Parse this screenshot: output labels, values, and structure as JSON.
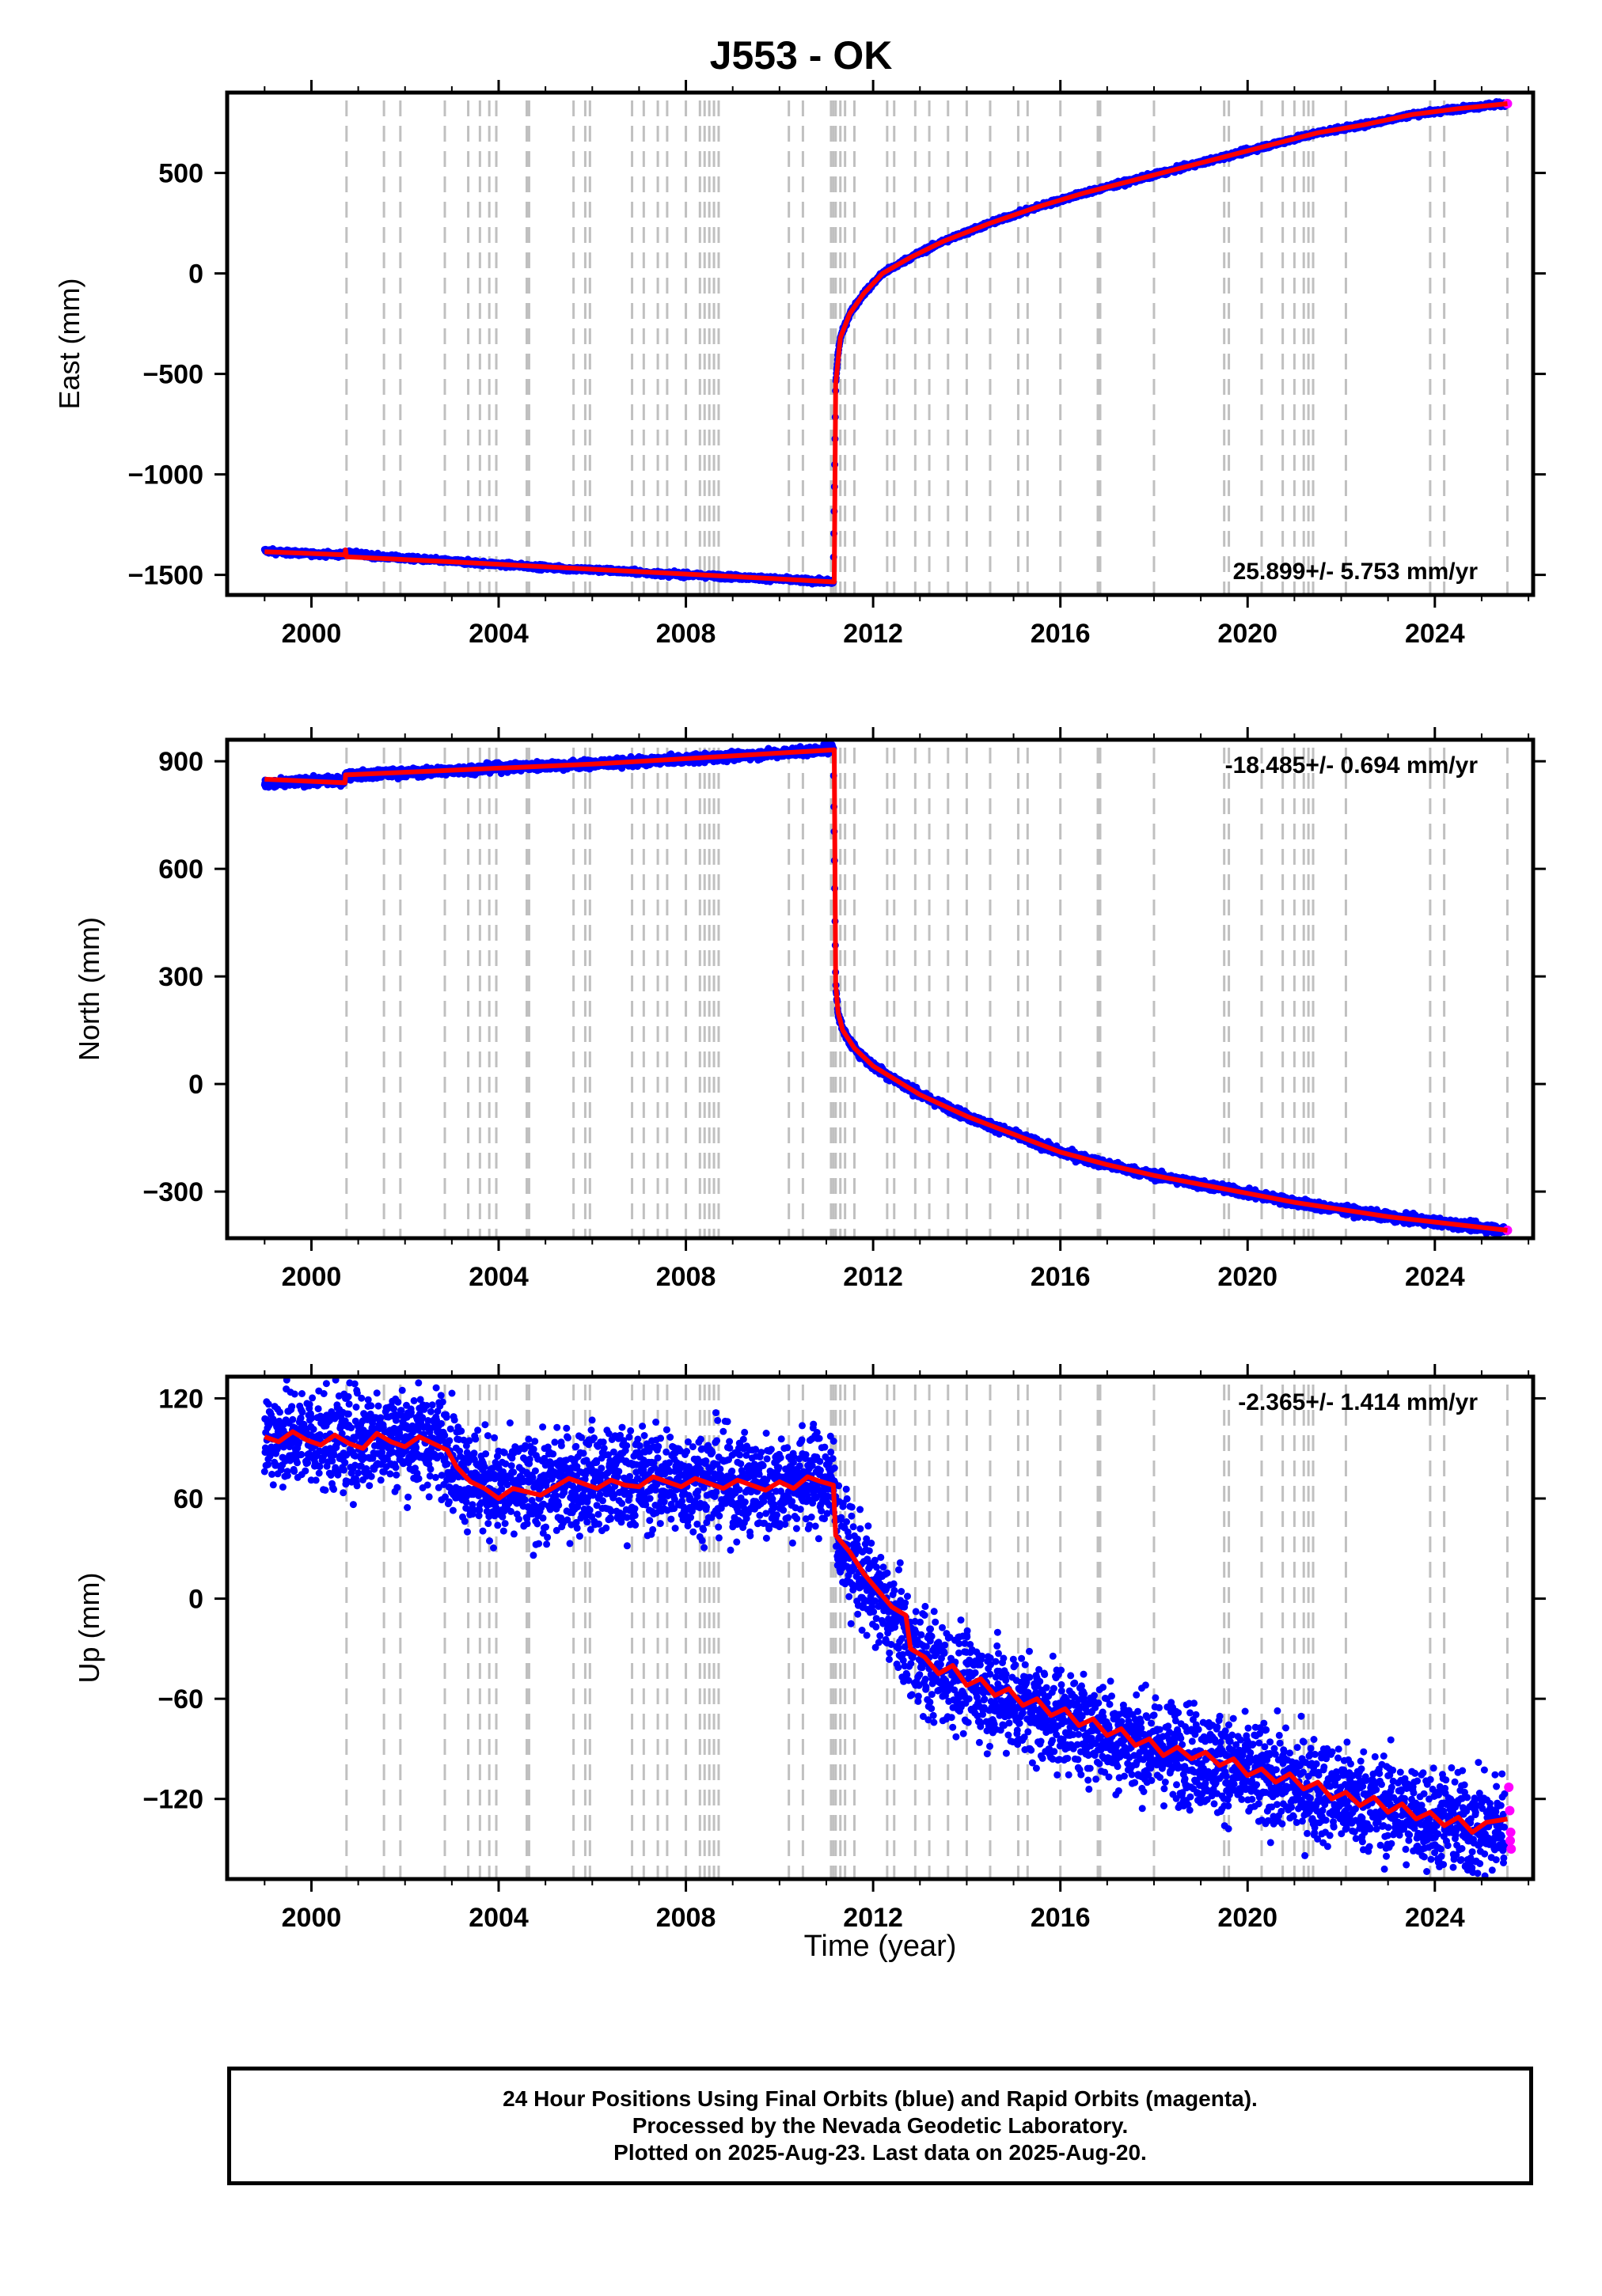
{
  "title": "J553 - OK",
  "xlabel": "Time (year)",
  "caption": [
    "24 Hour Positions Using Final Orbits (blue) and Rapid Orbits (magenta).",
    "Processed by the Nevada Geodetic Laboratory.",
    "Plotted on 2025-Aug-23. Last data on 2025-Aug-20."
  ],
  "colors": {
    "final": "#0000ff",
    "rapid": "#ff00ff",
    "model": "#ff0000",
    "event_lines": "#c0c0c0"
  },
  "chart_data": [
    {
      "type": "scatter",
      "ylabel": "East (mm)",
      "rate": "25.899+/- 5.753 mm/yr",
      "rate_position": "bottom-right",
      "xlim": [
        1998.2,
        2026.1
      ],
      "ylim": [
        -1600,
        900
      ],
      "xticks": [
        2000,
        2004,
        2008,
        2012,
        2016,
        2020,
        2024
      ],
      "yticks": [
        500,
        0,
        -500,
        -1000,
        -1500
      ],
      "ytick_labels": [
        "500",
        "0",
        "−500",
        "−1000",
        "−1500"
      ],
      "noise": 6,
      "final_points": [
        [
          1999.0,
          -1380
        ],
        [
          1999.5,
          -1390
        ],
        [
          2000.0,
          -1395
        ],
        [
          2000.7,
          -1400
        ],
        [
          2000.72,
          -1390
        ],
        [
          2001.5,
          -1410
        ],
        [
          2002.5,
          -1425
        ],
        [
          2003.5,
          -1440
        ],
        [
          2004.5,
          -1455
        ],
        [
          2005.5,
          -1470
        ],
        [
          2006.5,
          -1480
        ],
        [
          2007.5,
          -1495
        ],
        [
          2008.5,
          -1505
        ],
        [
          2009.5,
          -1515
        ],
        [
          2010.5,
          -1528
        ],
        [
          2011.15,
          -1535
        ],
        [
          2011.2,
          -550
        ],
        [
          2011.25,
          -400
        ],
        [
          2011.3,
          -320
        ],
        [
          2011.5,
          -200
        ],
        [
          2011.8,
          -100
        ],
        [
          2012.2,
          0
        ],
        [
          2012.8,
          80
        ],
        [
          2013.5,
          160
        ],
        [
          2014.5,
          250
        ],
        [
          2015.5,
          330
        ],
        [
          2016.5,
          400
        ],
        [
          2017.5,
          460
        ],
        [
          2018.5,
          520
        ],
        [
          2019.5,
          580
        ],
        [
          2020.5,
          640
        ],
        [
          2021.5,
          700
        ],
        [
          2022.5,
          740
        ],
        [
          2023.5,
          790
        ],
        [
          2024.5,
          820
        ],
        [
          2025.5,
          845
        ]
      ],
      "rapid_points": [
        [
          2025.55,
          845
        ]
      ],
      "model": [
        [
          1999.0,
          -1385
        ],
        [
          2000.72,
          -1400
        ],
        [
          2000.73,
          -1375
        ],
        [
          2000.75,
          -1410
        ],
        [
          2003.0,
          -1435
        ],
        [
          2006.0,
          -1472
        ],
        [
          2009.0,
          -1508
        ],
        [
          2011.17,
          -1535
        ],
        [
          2011.2,
          -550
        ],
        [
          2011.3,
          -320
        ],
        [
          2011.5,
          -200
        ],
        [
          2011.8,
          -100
        ],
        [
          2012.2,
          0
        ],
        [
          2012.8,
          80
        ],
        [
          2013.5,
          160
        ],
        [
          2014.5,
          250
        ],
        [
          2015.5,
          330
        ],
        [
          2016.5,
          400
        ],
        [
          2017.5,
          460
        ],
        [
          2018.5,
          520
        ],
        [
          2019.5,
          580
        ],
        [
          2020.5,
          640
        ],
        [
          2021.5,
          700
        ],
        [
          2022.5,
          740
        ],
        [
          2023.5,
          790
        ],
        [
          2024.5,
          820
        ],
        [
          2025.55,
          845
        ]
      ]
    },
    {
      "type": "scatter",
      "ylabel": "North (mm)",
      "rate": "-18.485+/- 0.694 mm/yr",
      "rate_position": "top-right",
      "xlim": [
        1998.2,
        2026.1
      ],
      "ylim": [
        -430,
        960
      ],
      "xticks": [
        2000,
        2004,
        2008,
        2012,
        2016,
        2020,
        2024
      ],
      "yticks": [
        900,
        600,
        300,
        0,
        -300
      ],
      "ytick_labels": [
        "900",
        "600",
        "300",
        "0",
        "−300"
      ],
      "noise": 6,
      "final_points": [
        [
          1999.0,
          835
        ],
        [
          1999.5,
          840
        ],
        [
          2000.0,
          845
        ],
        [
          2000.7,
          845
        ],
        [
          2000.72,
          860
        ],
        [
          2001.5,
          865
        ],
        [
          2002.5,
          870
        ],
        [
          2003.5,
          878
        ],
        [
          2004.5,
          885
        ],
        [
          2005.5,
          890
        ],
        [
          2006.5,
          895
        ],
        [
          2007.5,
          903
        ],
        [
          2008.5,
          910
        ],
        [
          2009.5,
          918
        ],
        [
          2010.5,
          928
        ],
        [
          2011.15,
          935
        ],
        [
          2011.2,
          280
        ],
        [
          2011.25,
          200
        ],
        [
          2011.35,
          150
        ],
        [
          2011.6,
          100
        ],
        [
          2012.0,
          50
        ],
        [
          2012.5,
          10
        ],
        [
          2013.0,
          -30
        ],
        [
          2014.0,
          -90
        ],
        [
          2015.0,
          -140
        ],
        [
          2016.0,
          -190
        ],
        [
          2017.0,
          -225
        ],
        [
          2018.0,
          -255
        ],
        [
          2019.0,
          -280
        ],
        [
          2020.0,
          -305
        ],
        [
          2021.0,
          -330
        ],
        [
          2022.0,
          -350
        ],
        [
          2023.0,
          -370
        ],
        [
          2024.0,
          -385
        ],
        [
          2025.0,
          -400
        ],
        [
          2025.5,
          -408
        ]
      ],
      "rapid_points": [
        [
          2025.55,
          -408
        ]
      ],
      "model": [
        [
          1999.0,
          850
        ],
        [
          2000.72,
          840
        ],
        [
          2000.73,
          862
        ],
        [
          2003.0,
          875
        ],
        [
          2006.0,
          892
        ],
        [
          2009.0,
          915
        ],
        [
          2011.17,
          932
        ],
        [
          2011.2,
          280
        ],
        [
          2011.25,
          200
        ],
        [
          2011.35,
          150
        ],
        [
          2011.6,
          100
        ],
        [
          2012.0,
          50
        ],
        [
          2012.5,
          10
        ],
        [
          2013.0,
          -30
        ],
        [
          2014.0,
          -90
        ],
        [
          2015.0,
          -140
        ],
        [
          2016.0,
          -190
        ],
        [
          2017.0,
          -225
        ],
        [
          2018.0,
          -255
        ],
        [
          2019.0,
          -280
        ],
        [
          2020.0,
          -305
        ],
        [
          2021.0,
          -330
        ],
        [
          2022.0,
          -350
        ],
        [
          2023.0,
          -370
        ],
        [
          2024.0,
          -385
        ],
        [
          2025.0,
          -400
        ],
        [
          2025.55,
          -408
        ]
      ]
    },
    {
      "type": "scatter",
      "ylabel": "Up (mm)",
      "rate": "-2.365+/- 1.414 mm/yr",
      "rate_position": "top-right",
      "xlim": [
        1998.2,
        2026.1
      ],
      "ylim": [
        -168,
        133
      ],
      "xticks": [
        2000,
        2004,
        2008,
        2012,
        2016,
        2020,
        2024
      ],
      "yticks": [
        120,
        60,
        0,
        -60,
        -120
      ],
      "ytick_labels": [
        "120",
        "60",
        "0",
        "−60",
        "−120"
      ],
      "noise": 15,
      "final_points": [
        [
          1999.0,
          98
        ],
        [
          1999.5,
          96
        ],
        [
          2000.0,
          97
        ],
        [
          2000.5,
          94
        ],
        [
          2001.0,
          95
        ],
        [
          2001.5,
          98
        ],
        [
          2002.0,
          96
        ],
        [
          2002.5,
          95
        ],
        [
          2002.9,
          94
        ],
        [
          2003.1,
          80
        ],
        [
          2003.5,
          72
        ],
        [
          2004.0,
          64
        ],
        [
          2004.5,
          65
        ],
        [
          2005.0,
          65
        ],
        [
          2005.5,
          70
        ],
        [
          2006.0,
          72
        ],
        [
          2006.5,
          70
        ],
        [
          2007.0,
          72
        ],
        [
          2007.5,
          71
        ],
        [
          2008.0,
          70
        ],
        [
          2008.5,
          71
        ],
        [
          2009.0,
          69
        ],
        [
          2009.5,
          67
        ],
        [
          2010.0,
          68
        ],
        [
          2010.5,
          72
        ],
        [
          2011.15,
          70
        ],
        [
          2011.25,
          40
        ],
        [
          2011.6,
          20
        ],
        [
          2012.0,
          5
        ],
        [
          2012.5,
          -15
        ],
        [
          2012.8,
          -30
        ],
        [
          2013.2,
          -40
        ],
        [
          2014.0,
          -50
        ],
        [
          2015.0,
          -62
        ],
        [
          2016.0,
          -72
        ],
        [
          2017.0,
          -80
        ],
        [
          2018.0,
          -90
        ],
        [
          2019.0,
          -95
        ],
        [
          2020.0,
          -105
        ],
        [
          2021.0,
          -112
        ],
        [
          2022.0,
          -118
        ],
        [
          2023.0,
          -125
        ],
        [
          2024.0,
          -132
        ],
        [
          2025.0,
          -138
        ],
        [
          2025.5,
          -135
        ]
      ],
      "rapid_points": [
        [
          2025.58,
          -113
        ],
        [
          2025.6,
          -127
        ],
        [
          2025.62,
          -140
        ],
        [
          2025.63,
          -150
        ],
        [
          2025.61,
          -145
        ]
      ],
      "model": [
        [
          1999.0,
          97
        ],
        [
          1999.3,
          94
        ],
        [
          1999.6,
          100
        ],
        [
          1999.9,
          95
        ],
        [
          2000.2,
          92
        ],
        [
          2000.5,
          98
        ],
        [
          2000.8,
          93
        ],
        [
          2001.1,
          90
        ],
        [
          2001.4,
          99
        ],
        [
          2001.7,
          94
        ],
        [
          2002.0,
          91
        ],
        [
          2002.3,
          97
        ],
        [
          2002.6,
          93
        ],
        [
          2002.9,
          89
        ],
        [
          2003.1,
          79
        ],
        [
          2003.4,
          70
        ],
        [
          2003.7,
          66
        ],
        [
          2004.0,
          60
        ],
        [
          2004.3,
          66
        ],
        [
          2004.6,
          64
        ],
        [
          2004.9,
          62
        ],
        [
          2005.2,
          67
        ],
        [
          2005.5,
          72
        ],
        [
          2005.8,
          69
        ],
        [
          2006.1,
          66
        ],
        [
          2006.4,
          71
        ],
        [
          2006.7,
          68
        ],
        [
          2007.0,
          67
        ],
        [
          2007.3,
          73
        ],
        [
          2007.6,
          70
        ],
        [
          2007.9,
          67
        ],
        [
          2008.2,
          72
        ],
        [
          2008.5,
          69
        ],
        [
          2008.8,
          66
        ],
        [
          2009.1,
          71
        ],
        [
          2009.4,
          68
        ],
        [
          2009.7,
          65
        ],
        [
          2010.0,
          70
        ],
        [
          2010.3,
          66
        ],
        [
          2010.6,
          73
        ],
        [
          2010.9,
          70
        ],
        [
          2011.15,
          68
        ],
        [
          2011.2,
          38
        ],
        [
          2011.5,
          28
        ],
        [
          2011.8,
          15
        ],
        [
          2012.1,
          5
        ],
        [
          2012.4,
          -5
        ],
        [
          2012.7,
          -10
        ],
        [
          2012.8,
          -30
        ],
        [
          2013.1,
          -35
        ],
        [
          2013.4,
          -45
        ],
        [
          2013.7,
          -40
        ],
        [
          2014.0,
          -52
        ],
        [
          2014.3,
          -48
        ],
        [
          2014.6,
          -58
        ],
        [
          2014.9,
          -54
        ],
        [
          2015.2,
          -64
        ],
        [
          2015.5,
          -60
        ],
        [
          2015.8,
          -70
        ],
        [
          2016.1,
          -66
        ],
        [
          2016.4,
          -76
        ],
        [
          2016.7,
          -72
        ],
        [
          2017.0,
          -82
        ],
        [
          2017.3,
          -78
        ],
        [
          2017.6,
          -88
        ],
        [
          2017.9,
          -84
        ],
        [
          2018.2,
          -94
        ],
        [
          2018.5,
          -89
        ],
        [
          2018.8,
          -96
        ],
        [
          2019.1,
          -92
        ],
        [
          2019.4,
          -100
        ],
        [
          2019.7,
          -96
        ],
        [
          2020.0,
          -106
        ],
        [
          2020.3,
          -102
        ],
        [
          2020.6,
          -110
        ],
        [
          2020.9,
          -105
        ],
        [
          2021.2,
          -114
        ],
        [
          2021.5,
          -110
        ],
        [
          2021.8,
          -120
        ],
        [
          2022.1,
          -116
        ],
        [
          2022.4,
          -124
        ],
        [
          2022.7,
          -119
        ],
        [
          2023.0,
          -128
        ],
        [
          2023.3,
          -123
        ],
        [
          2023.6,
          -132
        ],
        [
          2023.9,
          -128
        ],
        [
          2024.2,
          -136
        ],
        [
          2024.5,
          -131
        ],
        [
          2024.8,
          -140
        ],
        [
          2025.1,
          -134
        ],
        [
          2025.55,
          -132
        ]
      ]
    }
  ],
  "event_lines": [
    2000.75,
    2001.55,
    2001.9,
    2002.85,
    2003.35,
    2003.6,
    2003.8,
    2003.95,
    2004.6,
    2004.65,
    2005.6,
    2005.85,
    2005.95,
    2006.85,
    2007.1,
    2007.4,
    2007.6,
    2008.0,
    2008.3,
    2008.4,
    2008.5,
    2008.6,
    2008.7,
    2010.2,
    2010.5,
    2011.1,
    2011.15,
    2011.2,
    2011.3,
    2011.4,
    2011.6,
    2012.3,
    2012.45,
    2012.9,
    2013.2,
    2013.6,
    2014.0,
    2014.5,
    2015.1,
    2015.3,
    2016.0,
    2016.8,
    2016.85,
    2018.0,
    2019.5,
    2019.6,
    2020.3,
    2020.75,
    2021.0,
    2021.2,
    2021.3,
    2021.4,
    2022.1,
    2023.9,
    2024.2,
    2025.55
  ]
}
